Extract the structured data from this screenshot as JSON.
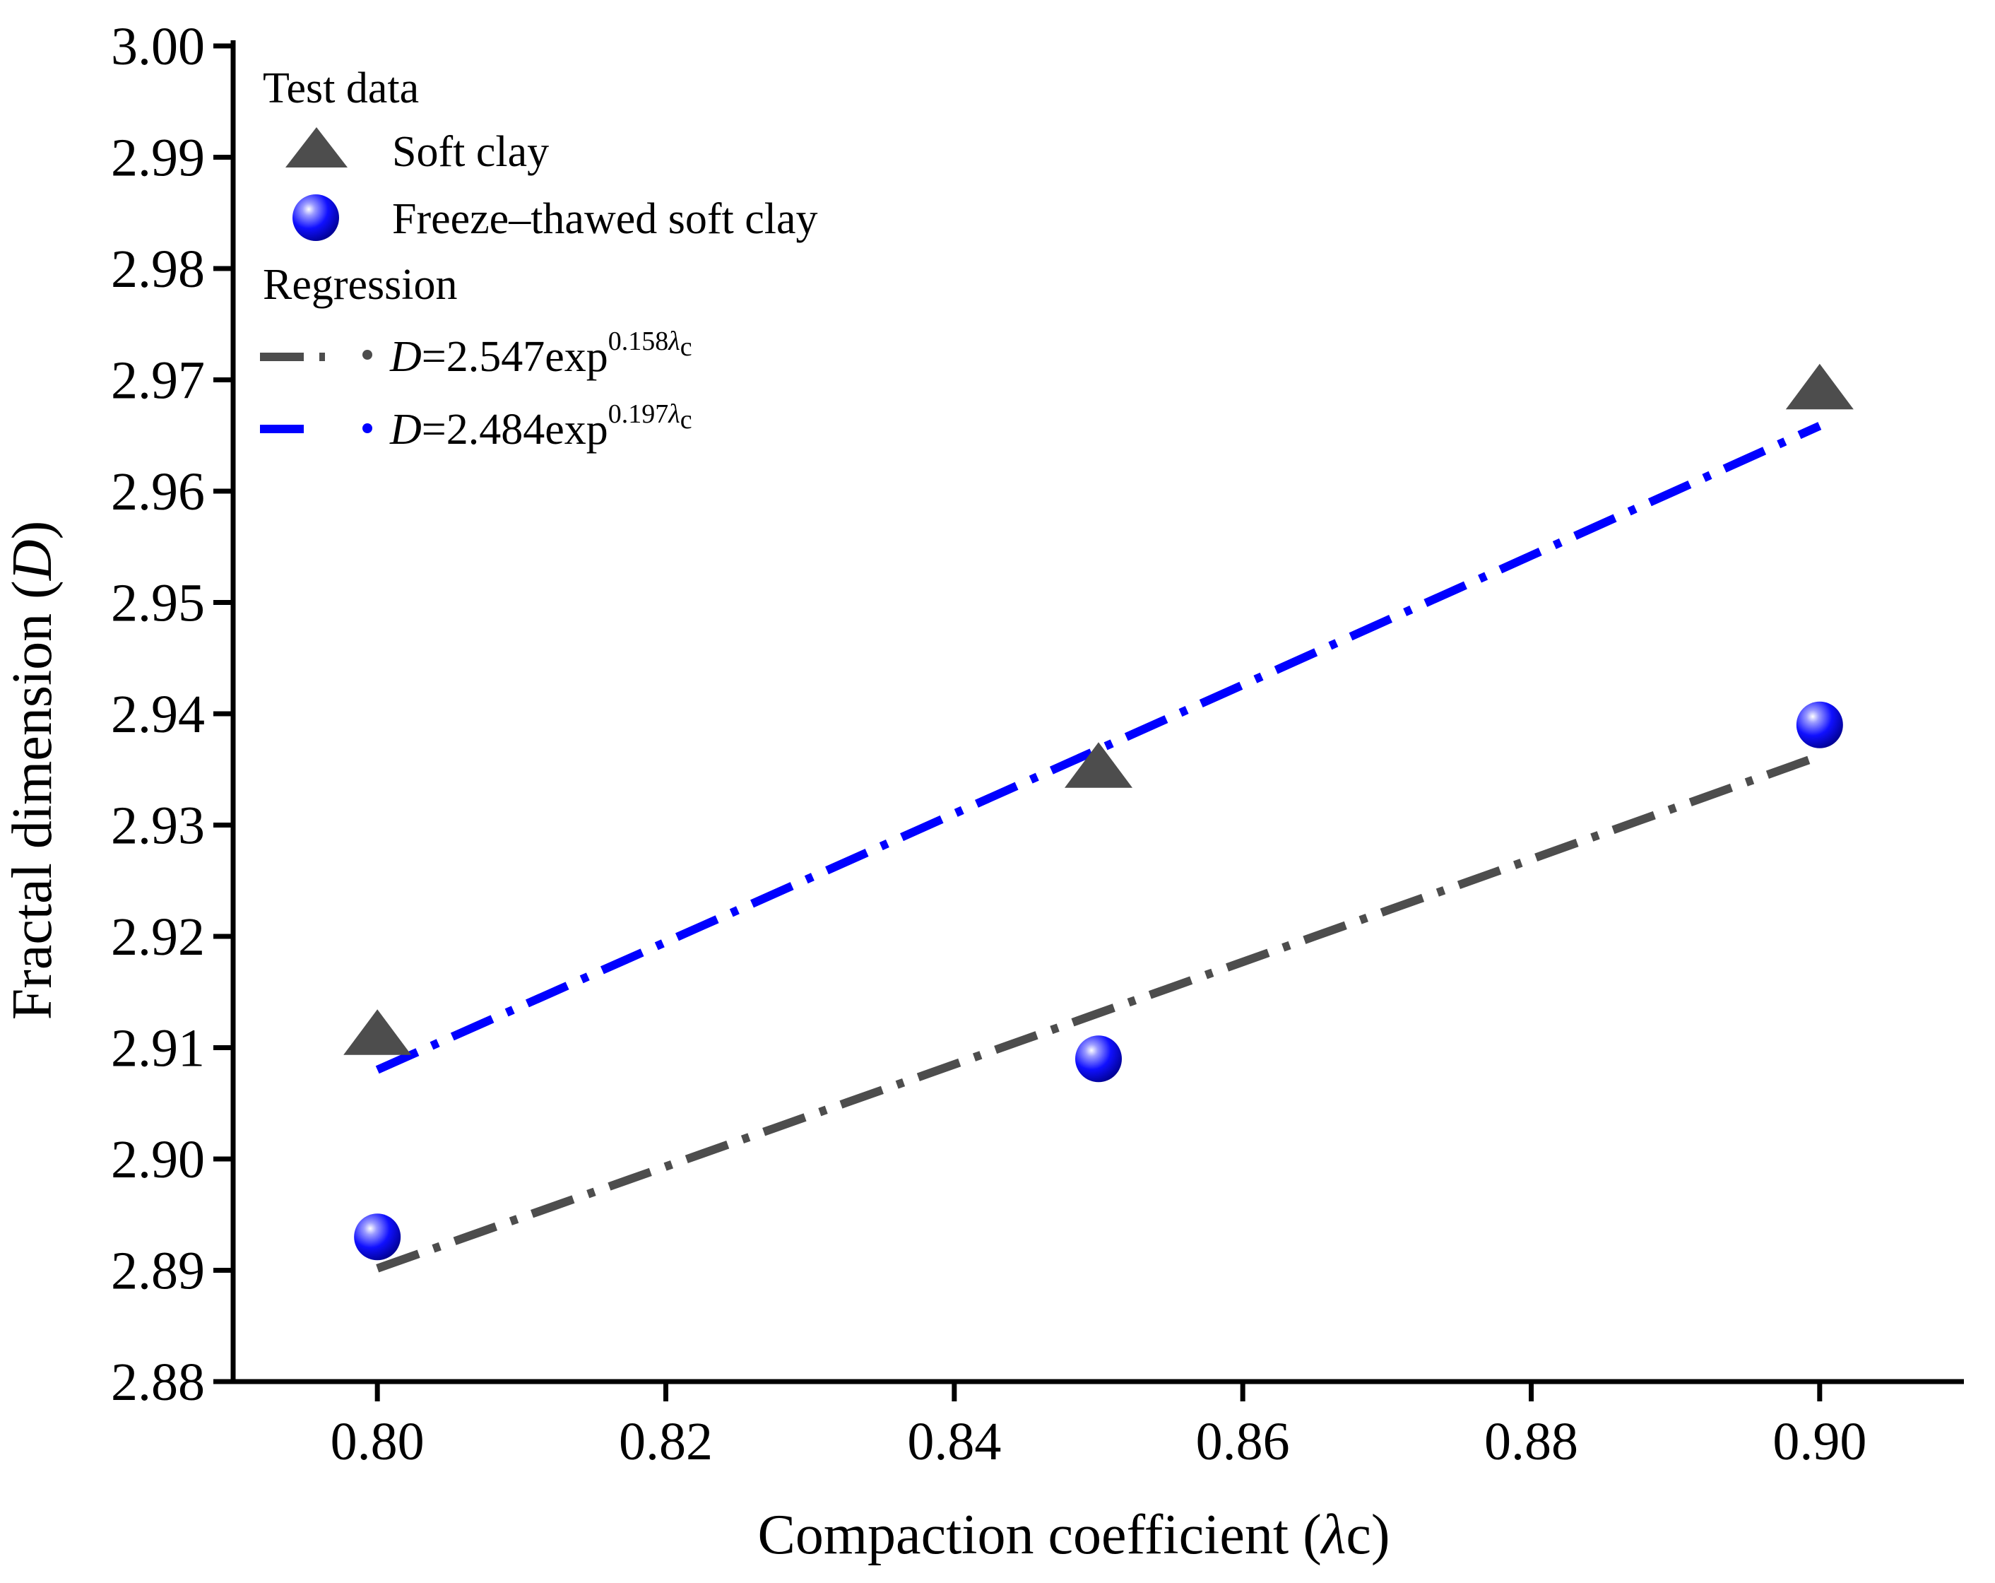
{
  "chart_data": {
    "type": "scatter",
    "x_axis": {
      "label_text": "Compaction coefficient (",
      "label_symbol": "λ",
      "label_tail": "c)",
      "range": [
        0.79,
        0.91
      ],
      "ticks": [
        0.8,
        0.82,
        0.84,
        0.86,
        0.88,
        0.9
      ],
      "tick_labels": [
        "0.80",
        "0.82",
        "0.84",
        "0.86",
        "0.88",
        "0.90"
      ]
    },
    "y_axis": {
      "label_text": "Fractal dimension (",
      "label_symbol": "D",
      "label_tail": ")",
      "range": [
        2.88,
        3.0
      ],
      "ticks": [
        2.88,
        2.89,
        2.9,
        2.91,
        2.92,
        2.93,
        2.94,
        2.95,
        2.96,
        2.97,
        2.98,
        2.99,
        3.0
      ],
      "tick_labels": [
        "2.88",
        "2.89",
        "2.90",
        "2.91",
        "2.92",
        "2.93",
        "2.94",
        "2.95",
        "2.96",
        "2.97",
        "2.98",
        "2.99",
        "3.00"
      ]
    },
    "grid": false,
    "legend": {
      "placement": "top-left",
      "group_test": "Test data",
      "group_regression": "Regression",
      "soft_clay_label": "Soft clay",
      "ft_clay_label": "Freeze–thawed soft clay",
      "reg1_var": "D",
      "reg1_eq": "=2.547exp",
      "reg1_sup": "0.158",
      "reg1_sup_sym": "λ",
      "reg1_sub": "c",
      "reg2_var": "D",
      "reg2_eq": "=2.484exp",
      "reg2_sup": "0.197",
      "reg2_sup_sym": "λ",
      "reg2_sub": "c"
    },
    "series": [
      {
        "name": "Soft clay",
        "kind": "points",
        "marker": "triangle",
        "color": "#4d4d4d",
        "x": [
          0.8,
          0.85,
          0.9
        ],
        "y": [
          2.911,
          2.935,
          2.969
        ]
      },
      {
        "name": "Freeze–thawed soft clay",
        "kind": "points",
        "marker": "sphere",
        "color": "#0000ff",
        "x": [
          0.8,
          0.85,
          0.9
        ],
        "y": [
          2.893,
          2.909,
          2.939
        ]
      },
      {
        "name": "D=2.547exp0.158λc",
        "kind": "regression",
        "color": "#4d4d4d",
        "coef_a": 2.547,
        "coef_b": 0.158,
        "x_range": [
          0.8,
          0.9
        ]
      },
      {
        "name": "D=2.484exp0.197λc",
        "kind": "regression",
        "color": "#0000ff",
        "coef_a": 2.484,
        "coef_b": 0.197,
        "x_range": [
          0.8,
          0.9
        ]
      }
    ]
  }
}
